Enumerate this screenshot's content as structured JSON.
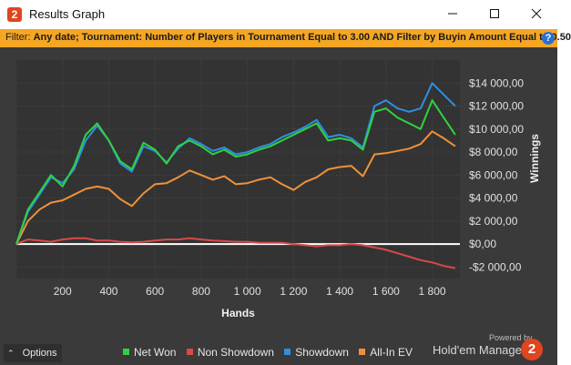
{
  "window": {
    "title": "Results Graph",
    "app_icon": "2",
    "minimize_icon": "minimize-icon",
    "maximize_icon": "maximize-icon",
    "close_icon": "close-icon"
  },
  "filter": {
    "label": "Filter:",
    "value": "Any date; Tournament: Number of Players in Tournament Equal to 3.00 AND Filter by Buyin Amount Equal to 0.50",
    "help": "?"
  },
  "footer": {
    "options_label": "Options",
    "options_icon": "chevron-up-icon",
    "powered_by": "Powered by",
    "brand": "Hold'em Manager",
    "brand_logo": "2"
  },
  "colors": {
    "net_won": "#2fd33f",
    "non_showdown": "#d9494a",
    "showdown": "#2f8fe0",
    "allin_ev": "#f0913a",
    "zero_line": "#ffffff",
    "filter_bg": "#f5a623",
    "panel_bg": "#3a3a3a"
  },
  "chart_data": {
    "type": "line",
    "xlabel": "Hands",
    "ylabel": "Winnings",
    "xlim": [
      0,
      1920
    ],
    "ylim": [
      -3000,
      16000
    ],
    "xticks": [
      200,
      400,
      600,
      800,
      1000,
      1200,
      1400,
      1600,
      1800
    ],
    "xtick_labels": [
      "200",
      "400",
      "600",
      "800",
      "1 000",
      "1 200",
      "1 400",
      "1 600",
      "1 800"
    ],
    "yticks": [
      -2000,
      0,
      2000,
      4000,
      6000,
      8000,
      10000,
      12000,
      14000
    ],
    "ytick_labels": [
      "-$2 000,00",
      "$0,00",
      "$2 000,00",
      "$4 000,00",
      "$6 000,00",
      "$8 000,00",
      "$10 000,00",
      "$12 000,00",
      "$14 000,00"
    ],
    "grid": true,
    "legend_position": "bottom",
    "x": [
      0,
      50,
      100,
      150,
      200,
      250,
      300,
      350,
      400,
      450,
      500,
      550,
      600,
      650,
      700,
      750,
      800,
      850,
      900,
      950,
      1000,
      1050,
      1100,
      1150,
      1200,
      1250,
      1300,
      1350,
      1400,
      1450,
      1500,
      1550,
      1600,
      1650,
      1700,
      1750,
      1800,
      1850,
      1900
    ],
    "series": [
      {
        "name": "Net Won",
        "values": [
          0,
          3000,
          4500,
          6000,
          5000,
          6800,
          9500,
          10500,
          9000,
          7200,
          6500,
          8800,
          8200,
          7000,
          8500,
          9000,
          8500,
          7800,
          8200,
          7600,
          7800,
          8200,
          8500,
          9000,
          9500,
          10000,
          10500,
          9000,
          9200,
          9000,
          8200,
          11500,
          11800,
          11000,
          10500,
          10000,
          12500,
          11000,
          9500
        ]
      },
      {
        "name": "Non Showdown",
        "values": [
          0,
          400,
          300,
          200,
          400,
          500,
          500,
          300,
          300,
          200,
          150,
          200,
          300,
          400,
          400,
          500,
          400,
          300,
          250,
          200,
          200,
          100,
          100,
          100,
          0,
          -100,
          -200,
          -100,
          -100,
          0,
          -100,
          -300,
          -500,
          -800,
          -1100,
          -1400,
          -1600,
          -1900,
          -2100
        ]
      },
      {
        "name": "Showdown",
        "values": [
          0,
          2800,
          4300,
          5800,
          5300,
          6500,
          9000,
          10300,
          9000,
          7000,
          6300,
          8500,
          8100,
          7100,
          8300,
          9200,
          8700,
          8100,
          8400,
          7800,
          8000,
          8400,
          8700,
          9300,
          9700,
          10200,
          10800,
          9300,
          9500,
          9200,
          8400,
          12000,
          12500,
          11800,
          11500,
          11800,
          14000,
          13000,
          12000
        ]
      },
      {
        "name": "All-In EV",
        "values": [
          0,
          2000,
          3000,
          3600,
          3800,
          4300,
          4800,
          5000,
          4800,
          3900,
          3300,
          4400,
          5200,
          5300,
          5800,
          6400,
          6000,
          5600,
          5900,
          5200,
          5300,
          5600,
          5800,
          5200,
          4700,
          5400,
          5800,
          6500,
          6700,
          6800,
          5900,
          7800,
          7900,
          8100,
          8300,
          8700,
          9800,
          9200,
          8500
        ]
      }
    ]
  }
}
